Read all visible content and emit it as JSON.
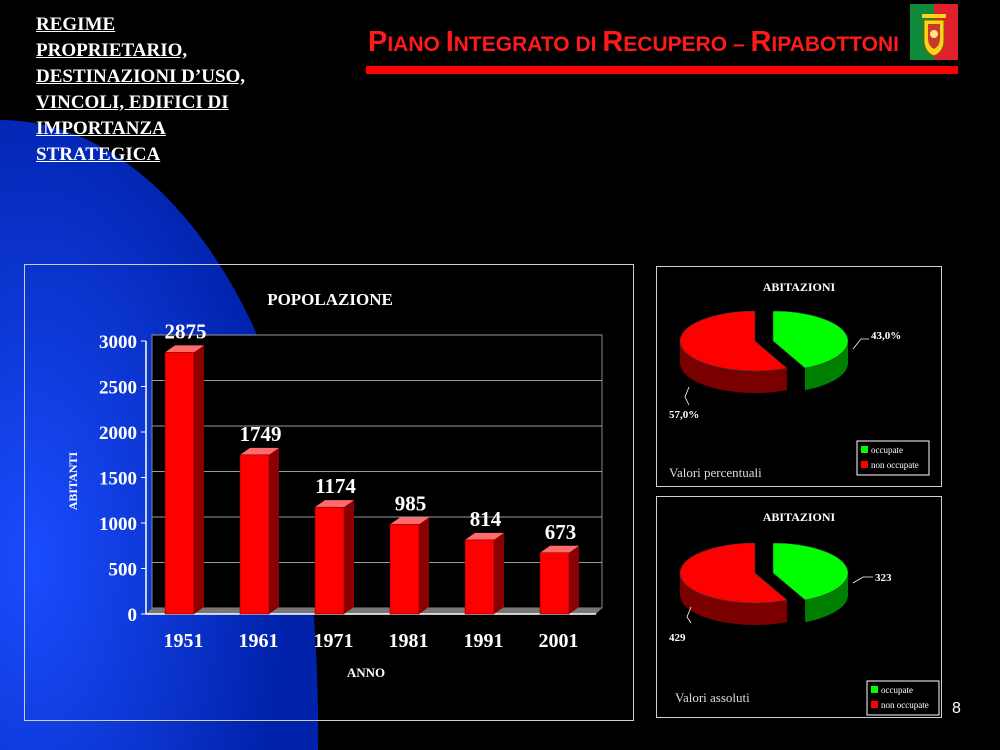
{
  "slide": {
    "heading_lines": [
      "REGIME",
      "PROPRIETARIO,",
      "DESTINAZIONI D’USO,",
      "VINCOLI, EDIFICI DI",
      "IMPORTANZA",
      "STRATEGICA"
    ],
    "title_parts": [
      "P",
      "IANO ",
      "I",
      "NTEGRATO DI ",
      "R",
      "ECUPERO – ",
      "R",
      "IPABOTTONI"
    ],
    "page_number": "8",
    "colors": {
      "background": "#000000",
      "blue_arc": "#0033cc",
      "title_red": "#ff1a1a"
    }
  },
  "chart_data": [
    {
      "type": "bar",
      "title": "POPOLAZIONE",
      "xlabel": "ANNO",
      "ylabel": "ABITANTI",
      "categories": [
        "1951",
        "1961",
        "1971",
        "1981",
        "1991",
        "2001"
      ],
      "values": [
        2875,
        1749,
        1174,
        985,
        814,
        673
      ],
      "data_labels": [
        "2875",
        "1749",
        "1174",
        "985",
        "814",
        "673"
      ],
      "ylim": [
        0,
        3000
      ],
      "yticks": [
        0,
        500,
        1000,
        1500,
        2000,
        2500,
        3000
      ],
      "ytick_labels": [
        "0",
        "500",
        "1000",
        "1500",
        "2000",
        "2500",
        "3000"
      ],
      "grid": true,
      "bar_color": "#ff0000"
    },
    {
      "type": "pie",
      "title": "ABITAZIONI",
      "subtitle": "Valori percentuali",
      "labels": [
        "occupate",
        "non occupate"
      ],
      "values": [
        43.0,
        57.0
      ],
      "data_labels": [
        "43,0%",
        "57,0%"
      ],
      "colors": [
        "#00ff00",
        "#ff0000"
      ],
      "legend": "bottom-right"
    },
    {
      "type": "pie",
      "title": "ABITAZIONI",
      "subtitle": "Valori assoluti",
      "labels": [
        "occupate",
        "non occupate"
      ],
      "values": [
        323,
        429
      ],
      "data_labels": [
        "323",
        "429"
      ],
      "colors": [
        "#00ff00",
        "#ff0000"
      ],
      "legend": "bottom-right"
    }
  ]
}
